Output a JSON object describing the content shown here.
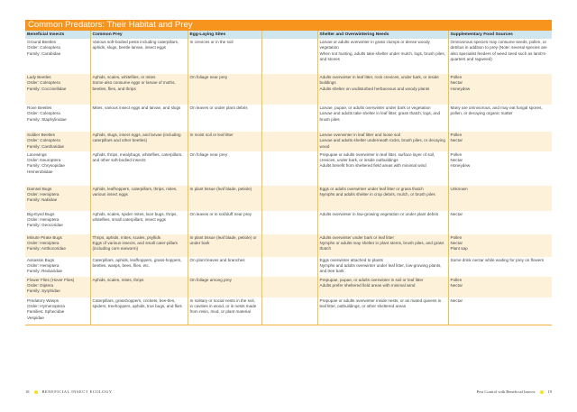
{
  "title": "Common Predators: Their Habitat and Prey",
  "headers": [
    "Beneficial Insects",
    "Common Prey",
    "Egg-Laying Sites",
    "",
    "Shelter and Overwintering Needs",
    "Supplementary Food Sources"
  ],
  "rows": [
    {
      "insect": [
        "Ground Beetles",
        "Order: Coleoptera",
        "Family: Carabidae"
      ],
      "prey": [
        "Various soft-bodied pests including caterpillars, aphids, slugs, beetle larvae, insect eggs"
      ],
      "eggs": [
        "In crevices or in the soil"
      ],
      "shelter": [
        "Larvae or adults overwinter in grass clumps or dense woody vegetation",
        "When not hunting, adults take shelter under mulch, logs, brush piles, and stones"
      ],
      "food": [
        "Omnivorous species may consume seeds, pollen, or detritus in addition to prey (Note: several species are also specialist feeders of weed seed such as lamb's-quarters and ragweed)"
      ]
    },
    {
      "insect": [
        "Lady Beetles",
        "Order: Coleoptera",
        "Family: Coccinellidae"
      ],
      "prey": [
        "Aphids, scales, whiteflies, or mites",
        "Some also consume eggs or larvae of moths, beetles, flies, and thrips"
      ],
      "eggs": [
        "On foliage near prey"
      ],
      "shelter": [
        "Adults overwinter in leaf litter, rock crevices, under bark, or inside buildings",
        "Adults shelter on undisturbed herbaceous and woody plants"
      ],
      "food": [
        "Pollen",
        "Nectar",
        "Honeydew"
      ]
    },
    {
      "insect": [
        "Rove Beetles",
        "Order: Coleoptera",
        "Family: Staphylinidae"
      ],
      "prey": [
        "Mites, various insect eggs and larvae, and slugs"
      ],
      "eggs": [
        "On leaves or under plant debris"
      ],
      "shelter": [
        "Larvae, pupae, or adults overwinter under bark or vegetation",
        "Larvae and adults take shelter in leaf litter, grass thatch, logs, and brush piles"
      ],
      "food": [
        "Many are omnivorous, and may eat fungal spores, pollen, or decaying organic matter"
      ]
    },
    {
      "insect": [
        "Soldier Beetles",
        "Order: Coleoptera",
        "Family: Cantharidae"
      ],
      "prey": [
        "Aphids, slugs, insect eggs, and larvae (including caterpillars and other beetles)"
      ],
      "eggs": [
        "In moist soil or leaf litter"
      ],
      "shelter": [
        "Larvae overwinter in leaf litter and loose soil",
        "Larvae and adults shelter underneath rocks, brush piles, or decaying wood"
      ],
      "food": [
        "Pollen",
        "Nectar"
      ]
    },
    {
      "insect": [
        "Lacewings",
        "Order: Neuroptera",
        "Family: Chrysopidae",
        "Hemerobiidae"
      ],
      "prey": [
        "Aphids, thrips, mealybugs, whiteflies, caterpillars, and other soft-bodied insects"
      ],
      "eggs": [
        "On foliage near prey"
      ],
      "shelter": [
        "Prepupae or adults overwinter in leaf litter, surface layer of soil, crevices, under bark, or inside outbuildings",
        "Adults benefit from sheltered field areas with minimal wind"
      ],
      "food": [
        "Pollen",
        "Nectar",
        "Honeydew"
      ]
    },
    {
      "insect": [
        "Damsel Bugs",
        "Order: Hemiptera",
        "Family: Nabidae"
      ],
      "prey": [
        "Aphids, leafhoppers, caterpillars, thrips, mites, various insect eggs"
      ],
      "eggs": [
        "In plant tissue (leaf blade, petiole)"
      ],
      "shelter": [
        "Eggs or adults overwinter under leaf litter or grass thatch",
        "Nymphs and adults shelter in crop debris, mulch, or brush piles"
      ],
      "food": [
        "Unknown"
      ]
    },
    {
      "insect": [
        "Big-Eyed Bugs",
        "Order: Hemiptera",
        "Family: Geocoridae"
      ],
      "prey": [
        "Aphids, scales, spider mites, lace bugs, thrips, whiteflies, small caterpillars, insect eggs"
      ],
      "eggs": [
        "On leaves or in soil/duff near prey"
      ],
      "shelter": [
        "Adults overwinter in low-growing vegetation or under plant debris"
      ],
      "food": [
        "Nectar"
      ]
    },
    {
      "insect": [
        "Minute Pirate Bugs",
        "Order: Hemiptera",
        "Family: Anthocoridae"
      ],
      "prey": [
        "Thrips, aphids, mites, scales, psyllids",
        "Eggs of various insects, and small cater-pillars (including corn earworm)"
      ],
      "eggs": [
        "In plant tissue (leaf blade, petiole) or under bark"
      ],
      "shelter": [
        "Adults overwinter under bark or leaf litter",
        "Nymphs or adults may shelter in plant stems, brush piles, and grass thatch"
      ],
      "food": [
        "Pollen",
        "Nectar",
        "Plant sap"
      ]
    },
    {
      "insect": [
        "Assassin Bugs",
        "Order: Hemiptera",
        "Family: Reduviidae"
      ],
      "prey": [
        "Caterpillars, aphids, leafhoppers, grass-hoppers, beetles, wasps, bees, flies, etc."
      ],
      "eggs": [
        "On plant leaves and branches"
      ],
      "shelter": [
        "Eggs overwinter attached to plants",
        "Nymphs and adults overwinter under leaf litter, low-growing plants, and tree bark"
      ],
      "food": [
        "Some drink nectar while waiting for prey on flowers"
      ]
    },
    {
      "insect": [
        "Flower Flies (Hover Flies)",
        "Order: Diptera",
        "Family: Syrphidae"
      ],
      "prey": [
        "Aphids, scales, mites, thrips"
      ],
      "eggs": [
        "On foliage among prey"
      ],
      "shelter": [
        "Prepupae, pupae, or adults overwinter in soil or leaf litter",
        "Adults prefer sheltered field areas with minimal wind"
      ],
      "food": [
        "Pollen",
        "Nectar"
      ]
    },
    {
      "insect": [
        "Predatory Wasps",
        "Order: Hymenoptera",
        "Families: Sphecidae",
        "Vespidae"
      ],
      "prey": [
        "Caterpillars, grasshoppers, crickets, bee-tles, spiders, treehoppers, aphids, true bugs, and flies"
      ],
      "eggs": [
        "In solitary or social nests in the soil, in cavities in wood, or in nests made from resin, mud, or plant material"
      ],
      "shelter": [
        "Prepupae or adults overwinter inside nests, or as mated queens in leaf litter, outbuildings, or other sheltered areas"
      ],
      "food": [
        "Nectar"
      ]
    }
  ],
  "footer": {
    "left_page": "18",
    "left_text": "BENEFICIAL INSECT ECOLOGY",
    "right_text": "Pest Control with Beneficial Insects",
    "right_page": "19"
  },
  "colors": {
    "title_bar": "#f7941d",
    "header_row": "#cfe6ee",
    "alt_row": "#fdf1da",
    "divider": "#f5c342",
    "bullet": "#f7e11d"
  }
}
